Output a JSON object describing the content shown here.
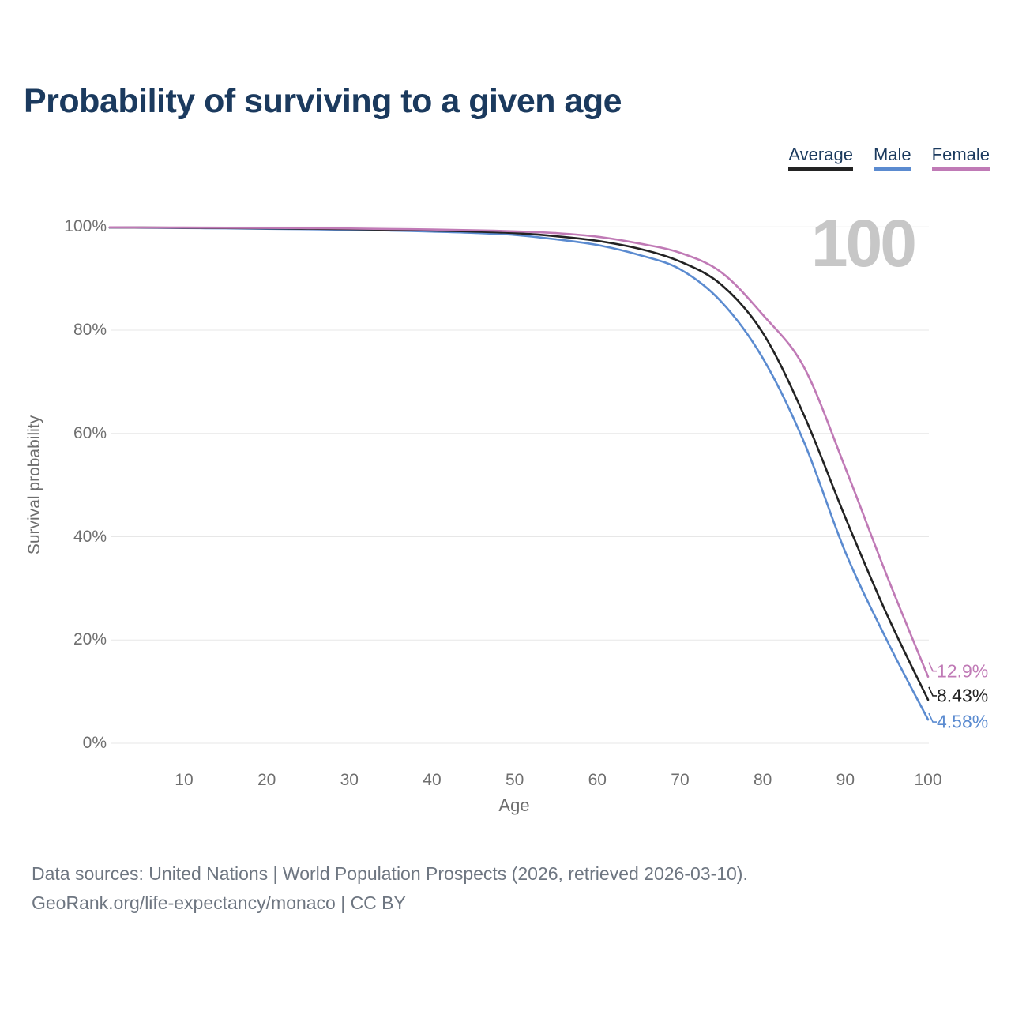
{
  "title": "Probability of surviving to a given age",
  "watermark": "100",
  "legend": [
    {
      "label": "Average",
      "color": "#232323"
    },
    {
      "label": "Male",
      "color": "#5b8bd0"
    },
    {
      "label": "Female",
      "color": "#c07ab6"
    }
  ],
  "chart_data": {
    "type": "line",
    "title": "Probability of surviving to a given age",
    "xlabel": "Age",
    "ylabel": "Survival probability",
    "xlim": [
      0,
      100
    ],
    "ylim": [
      0,
      100
    ],
    "grid": "horizontal-only",
    "legend_position": "top-right",
    "x_ticks": [
      {
        "value": 10,
        "label": "10"
      },
      {
        "value": 20,
        "label": "20"
      },
      {
        "value": 30,
        "label": "30"
      },
      {
        "value": 40,
        "label": "40"
      },
      {
        "value": 50,
        "label": "50"
      },
      {
        "value": 60,
        "label": "60"
      },
      {
        "value": 70,
        "label": "70"
      },
      {
        "value": 80,
        "label": "80"
      },
      {
        "value": 90,
        "label": "90"
      },
      {
        "value": 100,
        "label": "100"
      }
    ],
    "y_ticks": [
      {
        "value": 0,
        "label": "0%"
      },
      {
        "value": 20,
        "label": "20%"
      },
      {
        "value": 40,
        "label": "40%"
      },
      {
        "value": 60,
        "label": "60%"
      },
      {
        "value": 80,
        "label": "80%"
      },
      {
        "value": 100,
        "label": "100%"
      }
    ],
    "x": [
      1,
      5,
      10,
      15,
      20,
      25,
      30,
      35,
      40,
      45,
      50,
      55,
      60,
      65,
      70,
      75,
      80,
      85,
      90,
      95,
      100
    ],
    "series": [
      {
        "name": "Average",
        "color": "#232323",
        "end_label": "8.43%",
        "values": [
          99.9,
          99.87,
          99.83,
          99.78,
          99.72,
          99.65,
          99.57,
          99.45,
          99.3,
          99.1,
          98.8,
          98.2,
          97.3,
          95.8,
          93.3,
          88.8,
          79.5,
          63.5,
          43.7,
          25.0,
          8.43
        ]
      },
      {
        "name": "Male",
        "color": "#5b8bd0",
        "end_label": "4.58%",
        "values": [
          99.88,
          99.84,
          99.79,
          99.72,
          99.64,
          99.55,
          99.44,
          99.3,
          99.1,
          98.85,
          98.45,
          97.6,
          96.5,
          94.6,
          91.8,
          85.5,
          74.6,
          58.3,
          37.0,
          20.0,
          4.58
        ]
      },
      {
        "name": "Female",
        "color": "#c07ab6",
        "end_label": "12.9%",
        "values": [
          99.92,
          99.9,
          99.87,
          99.84,
          99.8,
          99.75,
          99.7,
          99.6,
          99.5,
          99.35,
          99.15,
          98.8,
          98.1,
          96.8,
          95.0,
          91.2,
          83.0,
          72.8,
          53.3,
          32.5,
          12.9
        ]
      }
    ]
  },
  "footer": {
    "line1": "Data sources: United Nations | World Population Prospects (2026, retrieved 2026-03-10).",
    "line2": "GeoRank.org/life-expectancy/monaco | CC BY"
  }
}
